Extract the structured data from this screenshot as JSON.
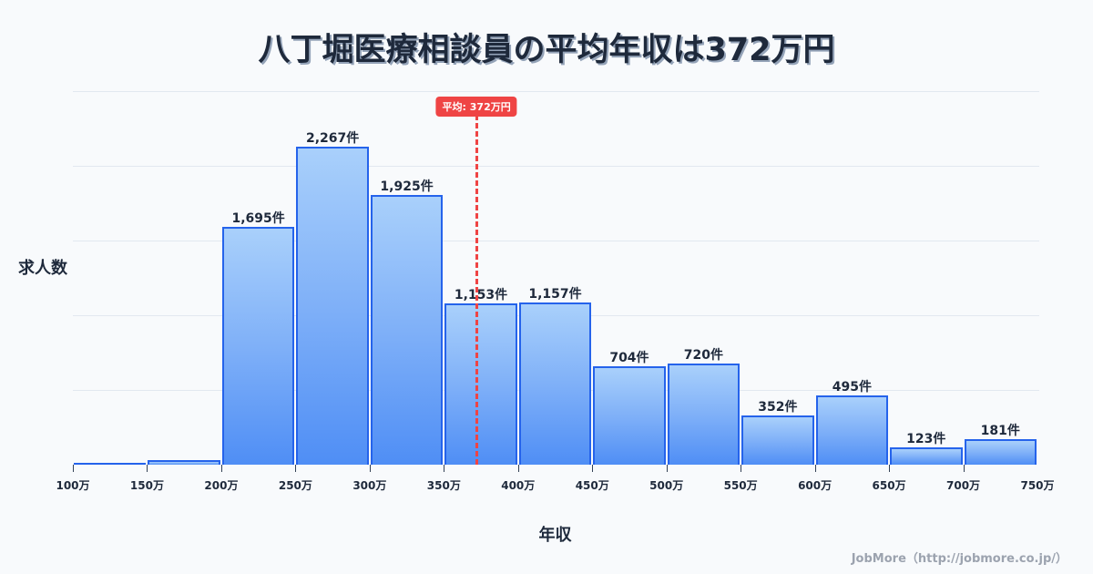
{
  "title": "八丁堀医療相談員の平均年収は372万円",
  "y_axis_label": "求人数",
  "x_axis_label": "年収",
  "credit": "JobMore（http://jobmore.co.jp/）",
  "average": {
    "label": "平均: 372万円",
    "value": 372,
    "color": "#ef4444"
  },
  "colors": {
    "bar_top": "#a9d0fb",
    "bar_bottom": "#4f8ef5",
    "bar_border": "#2563eb",
    "text": "#1e293b",
    "background": "#f8fafc"
  },
  "ticks": [
    "100万",
    "150万",
    "200万",
    "250万",
    "300万",
    "350万",
    "400万",
    "450万",
    "500万",
    "550万",
    "600万",
    "650万",
    "700万",
    "750万"
  ],
  "bars": [
    {
      "range": "100万-150万",
      "value": 12,
      "label": ""
    },
    {
      "range": "150万-200万",
      "value": 33,
      "label": ""
    },
    {
      "range": "200万-250万",
      "value": 1695,
      "label": "1,695件"
    },
    {
      "range": "250万-300万",
      "value": 2267,
      "label": "2,267件"
    },
    {
      "range": "300万-350万",
      "value": 1925,
      "label": "1,925件"
    },
    {
      "range": "350万-400万",
      "value": 1153,
      "label": "1,153件"
    },
    {
      "range": "400万-450万",
      "value": 1157,
      "label": "1,157件"
    },
    {
      "range": "450万-500万",
      "value": 704,
      "label": "704件"
    },
    {
      "range": "500万-550万",
      "value": 720,
      "label": "720件"
    },
    {
      "range": "550万-600万",
      "value": 352,
      "label": "352件"
    },
    {
      "range": "600万-650万",
      "value": 495,
      "label": "495件"
    },
    {
      "range": "650万-700万",
      "value": 123,
      "label": "123件"
    },
    {
      "range": "700万-750万",
      "value": 181,
      "label": "181件"
    }
  ],
  "chart_data": {
    "type": "bar",
    "title": "八丁堀医療相談員の平均年収は372万円",
    "xlabel": "年収",
    "ylabel": "求人数",
    "categories": [
      "100万-150万",
      "150万-200万",
      "200万-250万",
      "250万-300万",
      "300万-350万",
      "350万-400万",
      "400万-450万",
      "450万-500万",
      "500万-550万",
      "550万-600万",
      "600万-650万",
      "650万-700万",
      "700万-750万"
    ],
    "values": [
      12,
      33,
      1695,
      2267,
      1925,
      1153,
      1157,
      704,
      720,
      352,
      495,
      123,
      181
    ],
    "value_labels": [
      "",
      "",
      "1,695件",
      "2,267件",
      "1,925件",
      "1,153件",
      "1,157件",
      "704件",
      "720件",
      "352件",
      "495件",
      "123件",
      "181件"
    ],
    "x_tick_labels": [
      "100万",
      "150万",
      "200万",
      "250万",
      "300万",
      "350万",
      "400万",
      "450万",
      "500万",
      "550万",
      "600万",
      "650万",
      "700万",
      "750万"
    ],
    "xlim": [
      100,
      750
    ],
    "ylim": [
      0,
      2664
    ],
    "grid": "horizontal",
    "annotations": [
      {
        "type": "vline",
        "x": 372,
        "label": "平均: 372万円",
        "style": "dashed",
        "color": "#ef4444"
      }
    ]
  }
}
